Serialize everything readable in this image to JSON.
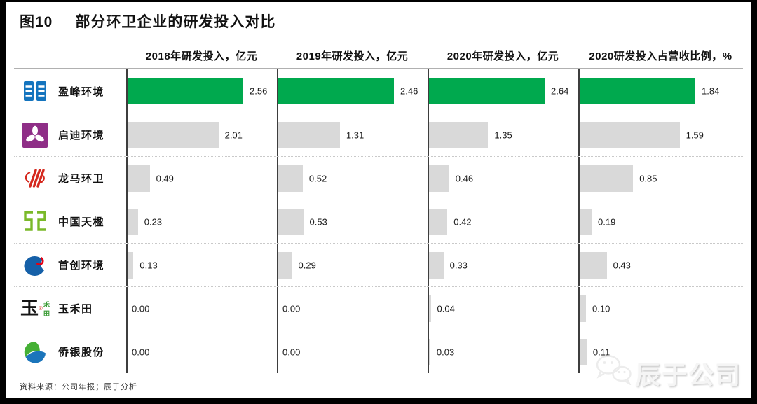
{
  "figure": {
    "label": "图10",
    "title": "部分环卫企业的研发投入对比"
  },
  "chart_data": {
    "type": "bar",
    "orientation": "horizontal",
    "categories": [
      "盈峰环境",
      "启迪环境",
      "龙马环卫",
      "中国天楹",
      "首创环境",
      "玉禾田",
      "侨银股份"
    ],
    "company_icons": [
      "yingfeng-environment-logo-icon",
      "qidi-environment-logo-icon",
      "longma-sanitation-logo-icon",
      "china-tianying-logo-icon",
      "capital-environment-logo-icon",
      "yuhetian-logo-icon",
      "qiaoyin-shares-logo-icon"
    ],
    "series": [
      {
        "name": "2018年研发投入，亿元",
        "values": [
          2.56,
          2.01,
          0.49,
          0.23,
          0.13,
          0.0,
          0.0
        ]
      },
      {
        "name": "2019年研发投入，亿元",
        "values": [
          2.46,
          1.31,
          0.52,
          0.53,
          0.29,
          0.0,
          0.0
        ]
      },
      {
        "name": "2020年研发投入，亿元",
        "values": [
          2.64,
          1.35,
          0.46,
          0.42,
          0.33,
          0.04,
          0.03
        ]
      },
      {
        "name": "2020研发投入占营收比例，%",
        "values": [
          1.84,
          1.59,
          0.85,
          0.19,
          0.43,
          0.1,
          0.11
        ]
      }
    ],
    "highlight_index": 0,
    "colors": {
      "highlight_bar": "#00A94E",
      "default_bar": "#D9D9D9"
    },
    "value_format": "2dp",
    "legend": "none",
    "gridlines": "dotted-row-separators",
    "scaling": "each panel scaled independently to its max value"
  },
  "footer": {
    "source": "资料来源：公司年报；辰于分析"
  },
  "watermark": {
    "icon": "wechat-icon",
    "text": "辰于公司"
  }
}
